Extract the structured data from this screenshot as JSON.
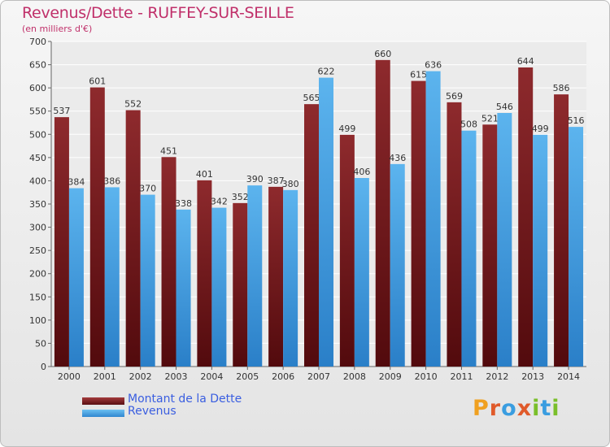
{
  "title": "Revenus/Dette - RUFFEY-SUR-SEILLE",
  "subtitle": "(en milliers d'€)",
  "logo_text": "Proxiti",
  "colors": {
    "dette": "#7a1d1f",
    "revenus": "#4aa3e6",
    "title": "#c0306a",
    "legend_text": "#3a5ee0"
  },
  "legend": [
    {
      "label": "Montant de la Dette",
      "color": "#7a1d1f"
    },
    {
      "label": "Revenus",
      "color": "#4aa3e6"
    }
  ],
  "chart_data": {
    "type": "bar",
    "title": "Revenus/Dette - RUFFEY-SUR-SEILLE",
    "subtitle": "(en milliers d'€)",
    "categories": [
      "2000",
      "2001",
      "2002",
      "2003",
      "2004",
      "2005",
      "2006",
      "2007",
      "2008",
      "2009",
      "2010",
      "2011",
      "2012",
      "2013",
      "2014"
    ],
    "series": [
      {
        "name": "Montant de la Dette",
        "values": [
          537,
          601,
          552,
          451,
          401,
          352,
          387,
          565,
          499,
          660,
          615,
          569,
          521,
          644,
          586
        ]
      },
      {
        "name": "Revenus",
        "values": [
          384,
          386,
          370,
          338,
          342,
          390,
          380,
          622,
          406,
          436,
          636,
          508,
          546,
          499,
          516
        ]
      }
    ],
    "ylim": [
      0,
      700
    ],
    "yticks": [
      0,
      50,
      100,
      150,
      200,
      250,
      300,
      350,
      400,
      450,
      500,
      550,
      600,
      650,
      700
    ],
    "grid": true,
    "legend_position": "bottom-left"
  }
}
